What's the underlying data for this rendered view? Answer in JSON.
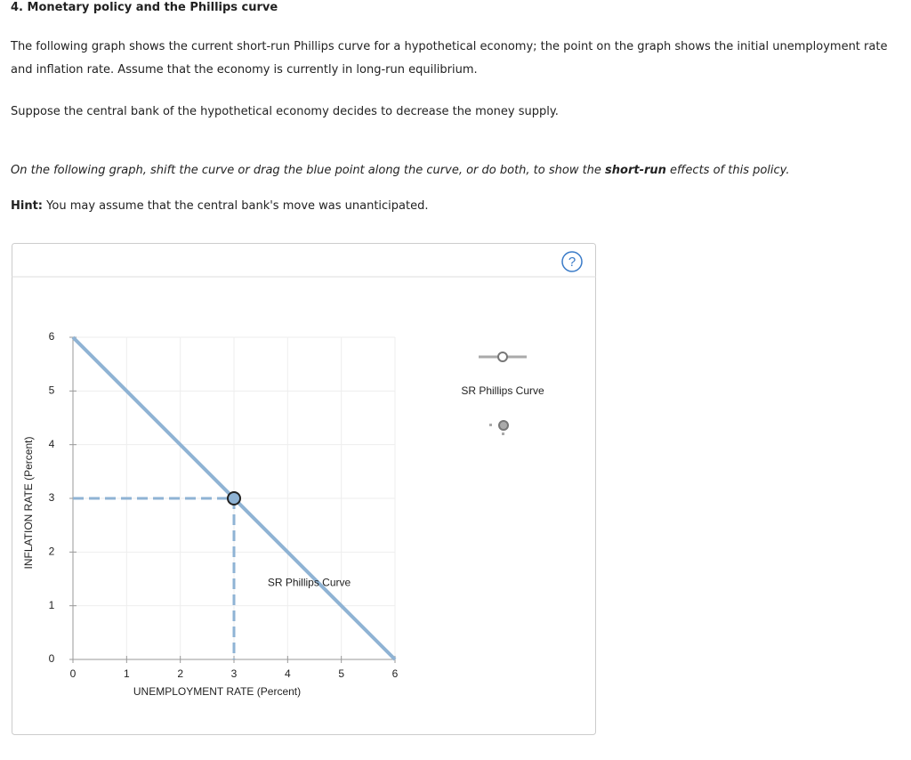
{
  "header": {
    "title": "4. Monetary policy and the Phillips curve"
  },
  "paragraphs": [
    "The following graph shows the current short-run Phillips curve for a hypothetical economy; the point on the graph shows the initial unemployment rate and inflation rate. Assume that the economy is currently in long-run equilibrium.",
    "Suppose the central bank of the hypothetical economy decides to decrease the money supply."
  ],
  "instruction": {
    "parts": [
      "On the following graph, shift the curve or drag the blue point along the curve, or do both, to show the ",
      "short-run",
      " effects of this policy."
    ]
  },
  "hint": {
    "label": "Hint:",
    "text": "You may assume that the central bank's move was unanticipated."
  },
  "chart_data": {
    "type": "line",
    "xlabel": "UNEMPLOYMENT RATE (Percent)",
    "ylabel": "INFLATION RATE (Percent)",
    "xlim": [
      0,
      6
    ],
    "ylim": [
      0,
      6
    ],
    "xticks": [
      0,
      1,
      2,
      3,
      4,
      5,
      6
    ],
    "yticks": [
      0,
      1,
      2,
      3,
      4,
      5,
      6
    ],
    "grid": true,
    "series": [
      {
        "name": "SR Phillips Curve",
        "color": "#8fb3d4",
        "x": [
          0,
          6
        ],
        "values": [
          6,
          0
        ]
      }
    ],
    "point": {
      "x": 3,
      "y": 3,
      "color": "#8fb3d4"
    },
    "help": "?"
  }
}
